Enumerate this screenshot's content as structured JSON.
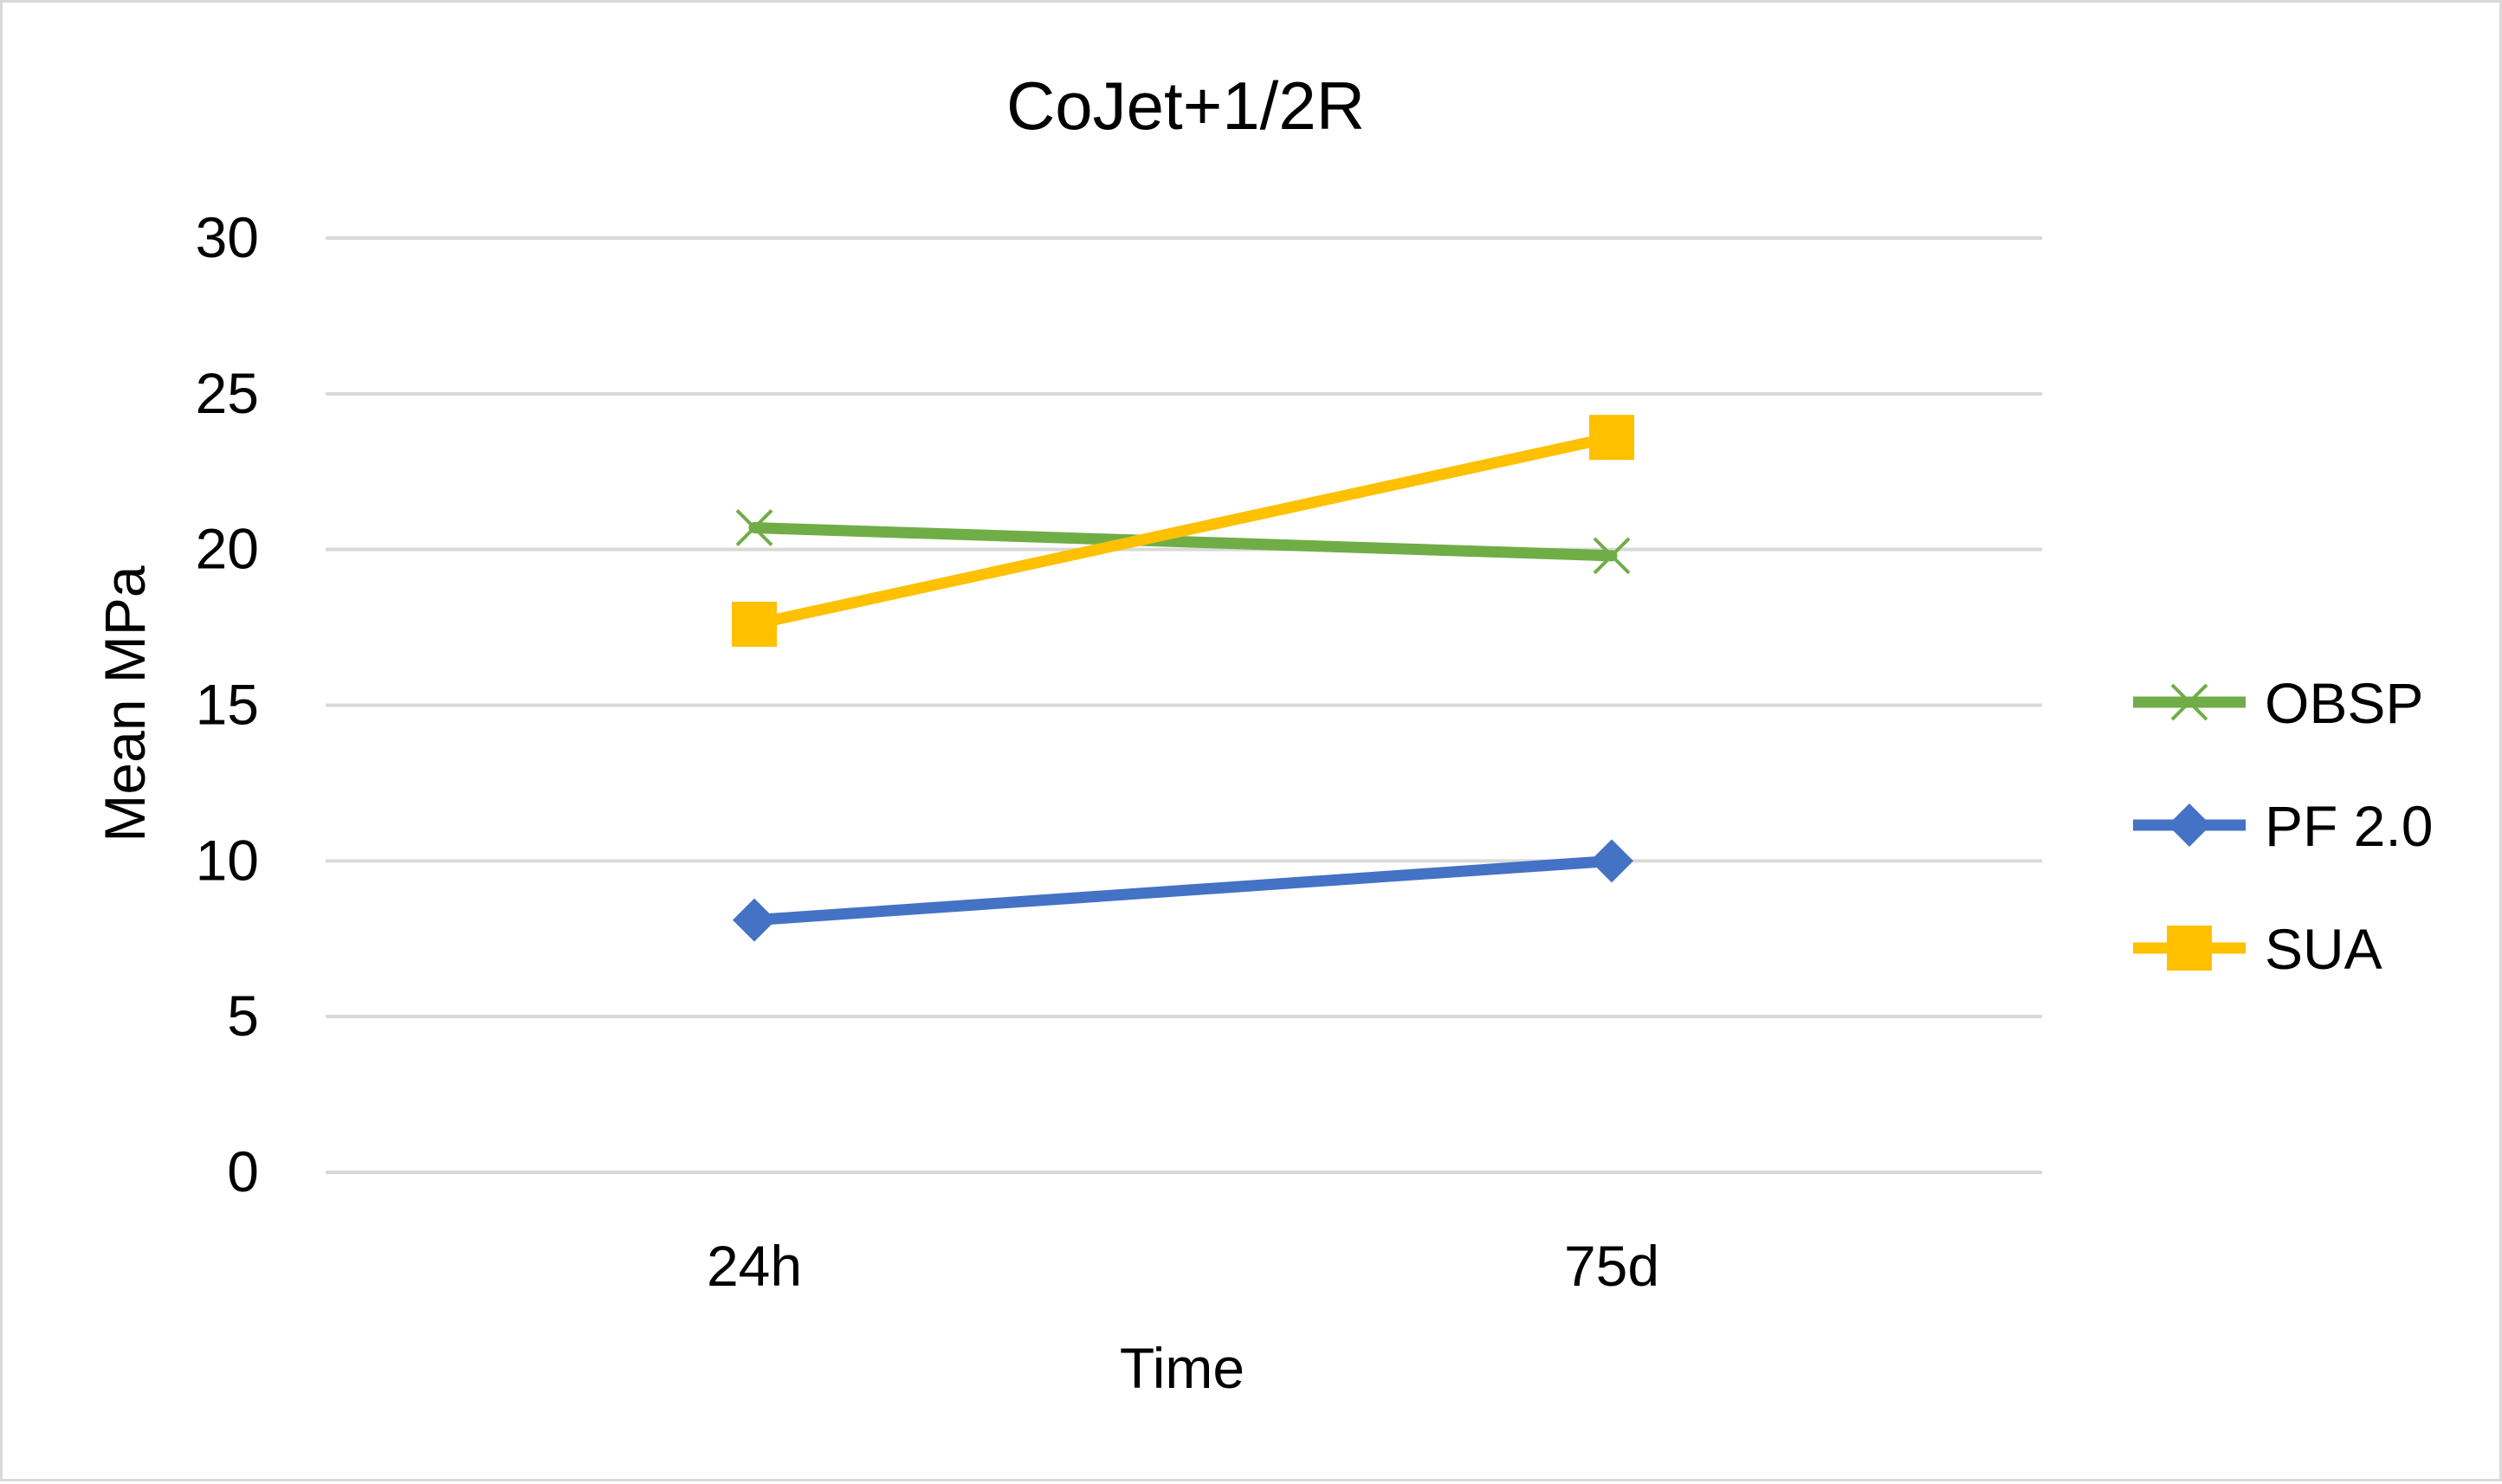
{
  "chart_data": {
    "type": "line",
    "title": "CoJet+1/2R",
    "xlabel": "Time",
    "ylabel": "Mean MPa",
    "categories": [
      "24h",
      "75d"
    ],
    "ylim": [
      0,
      30
    ],
    "yticks": [
      0,
      5,
      10,
      15,
      20,
      25,
      30
    ],
    "grid": true,
    "legend_position": "right",
    "series": [
      {
        "name": "OBSP",
        "values": [
          20.7,
          19.8
        ],
        "color": "#70ad47",
        "marker": "x"
      },
      {
        "name": "PF 2.0",
        "values": [
          8.1,
          10.0
        ],
        "color": "#4472c4",
        "marker": "diamond"
      },
      {
        "name": "SUA",
        "values": [
          17.6,
          23.6
        ],
        "color": "#ffc000",
        "marker": "square"
      }
    ]
  }
}
